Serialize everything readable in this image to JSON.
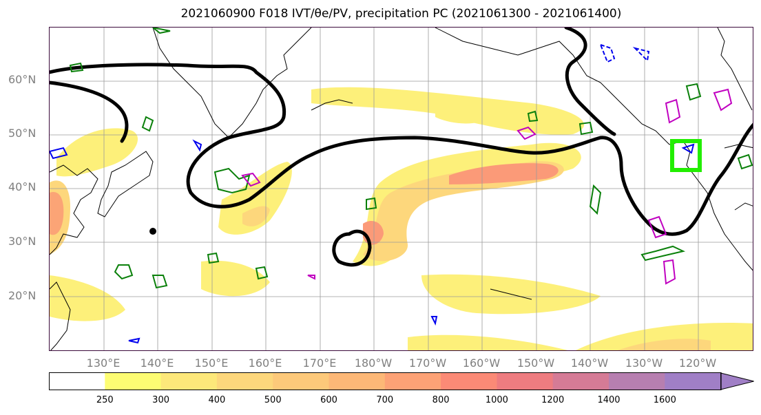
{
  "title": "2021060900 F018 IVT/θe/PV, precipitation PC (2021061300 - 2021061400)",
  "lat_labels": [
    "60°N",
    "50°N",
    "40°N",
    "30°N",
    "20°N"
  ],
  "lon_labels": [
    "130°E",
    "140°E",
    "150°E",
    "160°E",
    "170°E",
    "180°W",
    "170°W",
    "160°W",
    "150°W",
    "140°W",
    "130°W",
    "120°W"
  ],
  "colorbar": {
    "ticks": [
      "250",
      "300",
      "400",
      "500",
      "600",
      "700",
      "800",
      "1000",
      "1200",
      "1400",
      "1600"
    ],
    "colors": [
      "#ffffff",
      "#fdfd73",
      "#fde87a",
      "#fdd77c",
      "#fdc97a",
      "#fdb877",
      "#fda276",
      "#fb8a76",
      "#ee7c80",
      "#d57b96",
      "#b77fb0",
      "#a07fc6"
    ]
  }
}
